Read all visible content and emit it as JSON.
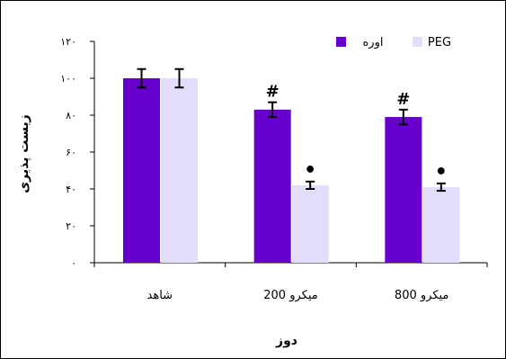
{
  "chart_data": {
    "type": "bar",
    "title": "",
    "xlabel": "دوز",
    "ylabel": "زیست پذیری",
    "ylim": [
      0,
      120
    ],
    "yticks": [
      0,
      20,
      40,
      60,
      80,
      100,
      120
    ],
    "ytick_labels": [
      "۰",
      "۲۰",
      "۴۰",
      "۶۰",
      "۸۰",
      "۱۰۰",
      "۱۲۰"
    ],
    "categories": [
      "شاهد",
      "میکرو 200",
      "میکرو 800"
    ],
    "series": [
      {
        "name": "اوره",
        "color": "#6600cc",
        "values": [
          100,
          83,
          79
        ],
        "errors": [
          5,
          4,
          4
        ],
        "markers": [
          "",
          "#",
          "#"
        ]
      },
      {
        "name": "PEG",
        "color": "#e3dcfb",
        "values": [
          100,
          42,
          41
        ],
        "errors": [
          5,
          2,
          2
        ],
        "markers": [
          "",
          "•",
          "•"
        ]
      }
    ],
    "legend_position": "top-right",
    "grid": false
  }
}
